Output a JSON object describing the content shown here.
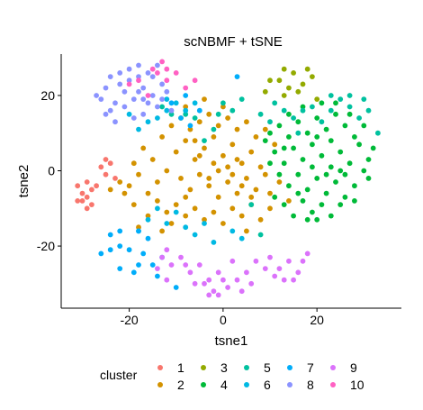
{
  "chart_data": {
    "type": "scatter",
    "title": "scNBMF + tSNE",
    "xlabel": "tsne1",
    "ylabel": "tsne2",
    "xlim": [
      -34.5,
      38
    ],
    "ylim": [
      -36.5,
      31
    ],
    "xticks": [
      -20,
      0,
      20
    ],
    "yticks": [
      -20,
      0,
      20
    ],
    "xtick_labels": [
      "-20",
      "0",
      "20"
    ],
    "ytick_labels": [
      "-20",
      "0",
      "20"
    ],
    "grid": false,
    "legend": {
      "title": "cluster",
      "position": "bottom"
    },
    "series": [
      {
        "name": "1",
        "color": "#F8766D",
        "points": [
          [
            -31,
            -4
          ],
          [
            -30,
            -6
          ],
          [
            -29,
            -7
          ],
          [
            -28,
            -5
          ],
          [
            -29,
            -3
          ],
          [
            -30,
            -8
          ],
          [
            -27,
            -4
          ],
          [
            -28,
            -9
          ],
          [
            -26,
            1
          ],
          [
            -25,
            3
          ],
          [
            -24,
            2
          ],
          [
            -25,
            -1
          ],
          [
            -29,
            -10
          ],
          [
            -31,
            -8
          ],
          [
            -23,
            -2
          ]
        ]
      },
      {
        "name": "2",
        "color": "#D39200",
        "points": [
          [
            -10,
            5
          ],
          [
            -8,
            8
          ],
          [
            -6,
            3
          ],
          [
            -4,
            6
          ],
          [
            -2,
            9
          ],
          [
            0,
            4
          ],
          [
            2,
            7
          ],
          [
            4,
            2
          ],
          [
            6,
            5
          ],
          [
            8,
            1
          ],
          [
            -9,
            -2
          ],
          [
            -7,
            -5
          ],
          [
            -5,
            -1
          ],
          [
            -3,
            -4
          ],
          [
            -1,
            -7
          ],
          [
            1,
            -3
          ],
          [
            3,
            -6
          ],
          [
            5,
            -2
          ],
          [
            7,
            -5
          ],
          [
            9,
            -1
          ],
          [
            -12,
            0
          ],
          [
            -14,
            -3
          ],
          [
            -16,
            -6
          ],
          [
            -18,
            -1
          ],
          [
            -20,
            -4
          ],
          [
            -15,
            3
          ],
          [
            -17,
            6
          ],
          [
            -13,
            9
          ],
          [
            -11,
            12
          ],
          [
            -9,
            14
          ],
          [
            -7,
            11
          ],
          [
            -5,
            13
          ],
          [
            -3,
            15
          ],
          [
            -1,
            12
          ],
          [
            1,
            14
          ],
          [
            3,
            11
          ],
          [
            5,
            13
          ],
          [
            7,
            9
          ],
          [
            9,
            11
          ],
          [
            11,
            7
          ],
          [
            -6,
            -10
          ],
          [
            -4,
            -13
          ],
          [
            -2,
            -11
          ],
          [
            0,
            -14
          ],
          [
            2,
            -10
          ],
          [
            4,
            -12
          ],
          [
            6,
            -9
          ],
          [
            -8,
            -12
          ],
          [
            -10,
            -9
          ],
          [
            -12,
            -11
          ],
          [
            -14,
            -8
          ],
          [
            10,
            -6
          ],
          [
            12,
            -3
          ],
          [
            14,
            -8
          ],
          [
            -19,
            -9
          ],
          [
            -21,
            -6
          ],
          [
            -22,
            -3
          ],
          [
            -19,
            2
          ],
          [
            -16,
            -12
          ],
          [
            -8,
            17
          ],
          [
            -4,
            19
          ],
          [
            0,
            17
          ],
          [
            -2,
            2
          ],
          [
            -1,
            0
          ],
          [
            1,
            1
          ],
          [
            2,
            -1
          ],
          [
            -3,
            -2
          ],
          [
            -5,
            4
          ],
          [
            3,
            3
          ],
          [
            4,
            -4
          ],
          [
            6,
            -7
          ],
          [
            -6,
            8
          ],
          [
            -8,
            -7
          ],
          [
            -11,
            -14
          ],
          [
            8,
            -13
          ],
          [
            10,
            -10
          ],
          [
            -13,
            -16
          ],
          [
            5,
            -16
          ],
          [
            -24,
            -5
          ],
          [
            -18,
            -15
          ]
        ]
      },
      {
        "name": "3",
        "color": "#93AA00",
        "points": [
          [
            13,
            27
          ],
          [
            15,
            26
          ],
          [
            12,
            24
          ],
          [
            14,
            22
          ],
          [
            17,
            23
          ],
          [
            19,
            25
          ],
          [
            10,
            24
          ],
          [
            13,
            20
          ],
          [
            16,
            21
          ],
          [
            18,
            27
          ],
          [
            20,
            19
          ],
          [
            9,
            21
          ]
        ]
      },
      {
        "name": "4",
        "color": "#00BA38",
        "points": [
          [
            9,
            8
          ],
          [
            11,
            5
          ],
          [
            13,
            2
          ],
          [
            15,
            6
          ],
          [
            17,
            3
          ],
          [
            19,
            7
          ],
          [
            21,
            4
          ],
          [
            23,
            1
          ],
          [
            25,
            5
          ],
          [
            27,
            2
          ],
          [
            12,
            -1
          ],
          [
            14,
            -4
          ],
          [
            16,
            -1
          ],
          [
            18,
            -5
          ],
          [
            20,
            -2
          ],
          [
            22,
            -6
          ],
          [
            24,
            -3
          ],
          [
            26,
            -7
          ],
          [
            28,
            -4
          ],
          [
            30,
            0
          ],
          [
            10,
            10
          ],
          [
            12,
            12
          ],
          [
            14,
            9
          ],
          [
            16,
            13
          ],
          [
            18,
            10
          ],
          [
            20,
            14
          ],
          [
            22,
            11
          ],
          [
            24,
            15
          ],
          [
            26,
            12
          ],
          [
            28,
            9
          ],
          [
            11,
            -7
          ],
          [
            13,
            -9
          ],
          [
            15,
            -12
          ],
          [
            17,
            -8
          ],
          [
            19,
            -11
          ],
          [
            21,
            -9
          ],
          [
            23,
            -12
          ],
          [
            20,
            -13
          ],
          [
            18,
            -13
          ],
          [
            25,
            -9
          ],
          [
            29,
            7
          ],
          [
            31,
            3
          ],
          [
            27,
            15
          ],
          [
            24,
            18
          ],
          [
            21,
            18
          ],
          [
            17,
            17
          ],
          [
            30,
            12
          ],
          [
            32,
            6
          ],
          [
            14,
            15
          ],
          [
            22,
            -1
          ],
          [
            26,
            -1
          ],
          [
            19,
            1
          ],
          [
            23,
            8
          ],
          [
            10,
            2
          ],
          [
            13,
            6
          ],
          [
            16,
            -6
          ],
          [
            28,
            -8
          ],
          [
            31,
            -2
          ],
          [
            25,
            0
          ],
          [
            20,
            9
          ]
        ]
      },
      {
        "name": "5",
        "color": "#00C19F",
        "points": [
          [
            11,
            18
          ],
          [
            13,
            16
          ],
          [
            15,
            14
          ],
          [
            17,
            16
          ],
          [
            19,
            17
          ],
          [
            21,
            13
          ],
          [
            23,
            16
          ],
          [
            25,
            19
          ],
          [
            27,
            17
          ],
          [
            29,
            14
          ],
          [
            31,
            16
          ],
          [
            33,
            10
          ],
          [
            30,
            19
          ],
          [
            27,
            20
          ],
          [
            23,
            20
          ],
          [
            -4,
            8
          ],
          [
            -2,
            11
          ],
          [
            -6,
            14
          ],
          [
            0,
            18
          ],
          [
            2,
            16
          ],
          [
            4,
            19
          ],
          [
            8,
            15
          ],
          [
            10,
            13
          ],
          [
            -8,
            15
          ],
          [
            -11,
            15
          ],
          [
            6,
            -9
          ],
          [
            8,
            -17
          ],
          [
            -13,
            17
          ],
          [
            16,
            10
          ],
          [
            -1,
            15
          ]
        ]
      },
      {
        "name": "6",
        "color": "#00B9E3",
        "points": [
          [
            -14,
            14
          ],
          [
            -12,
            16
          ],
          [
            -10,
            18
          ],
          [
            -8,
            16
          ],
          [
            -16,
            13
          ],
          [
            -12,
            19
          ],
          [
            -6,
            18
          ],
          [
            -20,
            15
          ],
          [
            -18,
            11
          ],
          [
            -16,
            -13
          ],
          [
            -14,
            -10
          ],
          [
            -12,
            -14
          ],
          [
            -10,
            -11
          ],
          [
            -8,
            -15
          ],
          [
            2,
            -16
          ],
          [
            4,
            -18
          ],
          [
            -18,
            -16
          ],
          [
            -6,
            -17
          ],
          [
            -4,
            -14
          ],
          [
            -2,
            -19
          ]
        ]
      },
      {
        "name": "7",
        "color": "#00ADFA",
        "points": [
          [
            -26,
            -22
          ],
          [
            -24,
            -21
          ],
          [
            -22,
            -20
          ],
          [
            -20,
            -21
          ],
          [
            -18,
            -16
          ],
          [
            -16,
            -18
          ],
          [
            -17,
            -22
          ],
          [
            -15,
            -25
          ],
          [
            -13,
            -23
          ],
          [
            -14,
            -28
          ],
          [
            -18,
            -25
          ],
          [
            -22,
            -16
          ],
          [
            -10,
            -31
          ],
          [
            -19,
            -27
          ],
          [
            -11,
            18
          ],
          [
            -8,
            20
          ],
          [
            -5,
            16
          ],
          [
            -9,
            14
          ],
          [
            3,
            25
          ],
          [
            -7,
            12
          ],
          [
            -22,
            -26
          ],
          [
            -24,
            -17
          ]
        ]
      },
      {
        "name": "8",
        "color": "#8B93FF",
        "points": [
          [
            -27,
            20
          ],
          [
            -25,
            22
          ],
          [
            -23,
            18
          ],
          [
            -21,
            21
          ],
          [
            -19,
            19
          ],
          [
            -17,
            22
          ],
          [
            -15,
            20
          ],
          [
            -13,
            23
          ],
          [
            -18,
            25
          ],
          [
            -21,
            17
          ],
          [
            -22,
            23
          ],
          [
            -20,
            24
          ],
          [
            -16,
            18
          ],
          [
            -14,
            17
          ],
          [
            -24,
            16
          ],
          [
            -26,
            19
          ],
          [
            -23,
            13
          ],
          [
            -19,
            14
          ],
          [
            -17,
            15
          ],
          [
            -15,
            25
          ],
          [
            -12,
            21
          ],
          [
            -20,
            27
          ],
          [
            -18,
            28
          ],
          [
            -16,
            26
          ],
          [
            -14,
            28
          ],
          [
            -22,
            26
          ],
          [
            -24,
            25
          ],
          [
            -25,
            15
          ],
          [
            -13,
            19
          ],
          [
            -11,
            16
          ],
          [
            -18,
            21
          ],
          [
            -17,
            19
          ]
        ]
      },
      {
        "name": "9",
        "color": "#DB72FB",
        "points": [
          [
            -13,
            -23
          ],
          [
            -11,
            -25
          ],
          [
            -9,
            -23
          ],
          [
            -7,
            -27
          ],
          [
            -5,
            -25
          ],
          [
            -3,
            -29
          ],
          [
            -1,
            -27
          ],
          [
            1,
            -31
          ],
          [
            3,
            -29
          ],
          [
            5,
            -27
          ],
          [
            -2,
            -32
          ],
          [
            -4,
            -30
          ],
          [
            0,
            -29
          ],
          [
            6,
            -30
          ],
          [
            -14,
            -26
          ],
          [
            -12,
            -29
          ],
          [
            10,
            -23
          ],
          [
            12,
            -26
          ],
          [
            14,
            -24
          ],
          [
            16,
            -27
          ],
          [
            18,
            -22
          ],
          [
            15,
            -29
          ],
          [
            13,
            -29
          ],
          [
            11,
            -28
          ],
          [
            9,
            -26
          ],
          [
            17,
            -24
          ],
          [
            -1,
            -33
          ],
          [
            -3,
            -33
          ],
          [
            2,
            -24
          ],
          [
            4,
            -32
          ],
          [
            -8,
            -25
          ],
          [
            -6,
            -30
          ],
          [
            7,
            -24
          ],
          [
            -12,
            -21
          ]
        ]
      },
      {
        "name": "10",
        "color": "#FF61C3",
        "points": [
          [
            -18,
            24
          ],
          [
            -16,
            20
          ],
          [
            -14,
            26
          ],
          [
            -12,
            24
          ],
          [
            -13,
            29
          ],
          [
            -20,
            23
          ],
          [
            -8,
            22
          ],
          [
            -10,
            26
          ],
          [
            -6,
            24
          ],
          [
            -15,
            27
          ],
          [
            -12,
            27
          ]
        ]
      }
    ]
  }
}
